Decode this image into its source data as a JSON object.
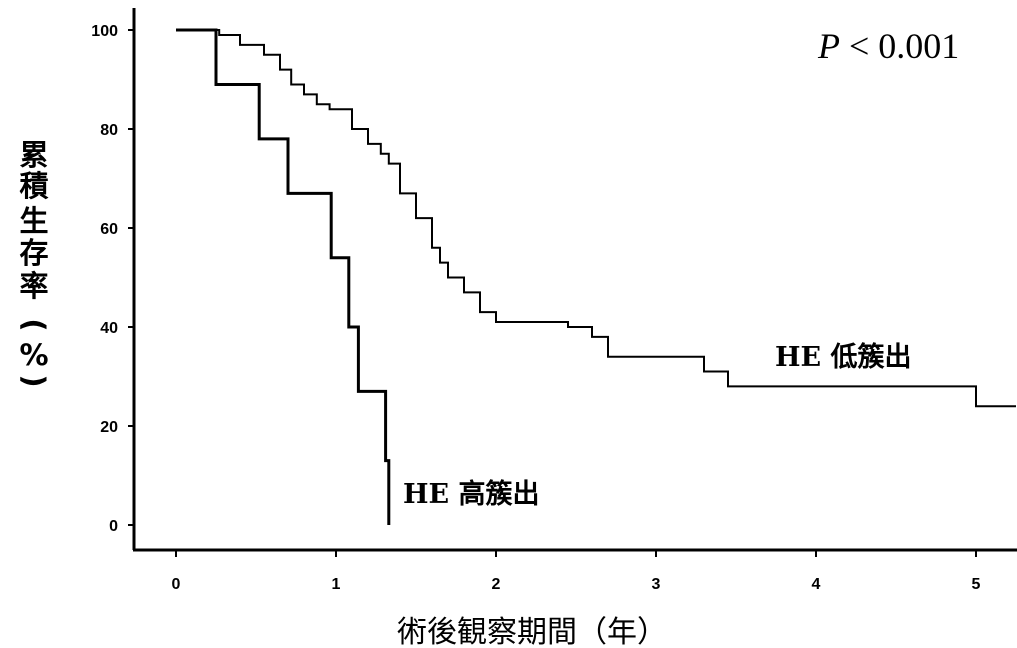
{
  "chart_data": {
    "type": "line",
    "title": "",
    "xlabel": "術後観察期間（年）",
    "ylabel": "累積生存率（%）",
    "xlim": [
      0,
      5.25
    ],
    "ylim": [
      0,
      100
    ],
    "x_ticks": [
      0,
      1,
      2,
      3,
      4,
      5
    ],
    "y_ticks": [
      0,
      20,
      40,
      60,
      80,
      100
    ],
    "grid": false,
    "annotation": "P < 0.001",
    "series": [
      {
        "name": "HE 低簇出",
        "step": true,
        "x": [
          0,
          0.27,
          0.4,
          0.55,
          0.65,
          0.72,
          0.8,
          0.88,
          0.96,
          1.1,
          1.2,
          1.28,
          1.33,
          1.4,
          1.5,
          1.6,
          1.65,
          1.7,
          1.8,
          1.9,
          2.0,
          2.3,
          2.45,
          2.6,
          2.7,
          3.0,
          3.3,
          3.45,
          5.0,
          5.25
        ],
        "values": [
          100,
          99,
          97,
          95,
          92,
          89,
          87,
          85,
          84,
          80,
          77,
          75,
          73,
          67,
          62,
          56,
          53,
          50,
          47,
          43,
          41,
          41,
          40,
          38,
          34,
          34,
          31,
          28,
          24,
          24
        ]
      },
      {
        "name": "HE 高簇出",
        "step": true,
        "x": [
          0,
          0.25,
          0.52,
          0.7,
          0.97,
          1.08,
          1.14,
          1.31,
          1.33
        ],
        "values": [
          100,
          89,
          78,
          67,
          54,
          40,
          27,
          13,
          0
        ]
      }
    ]
  }
}
